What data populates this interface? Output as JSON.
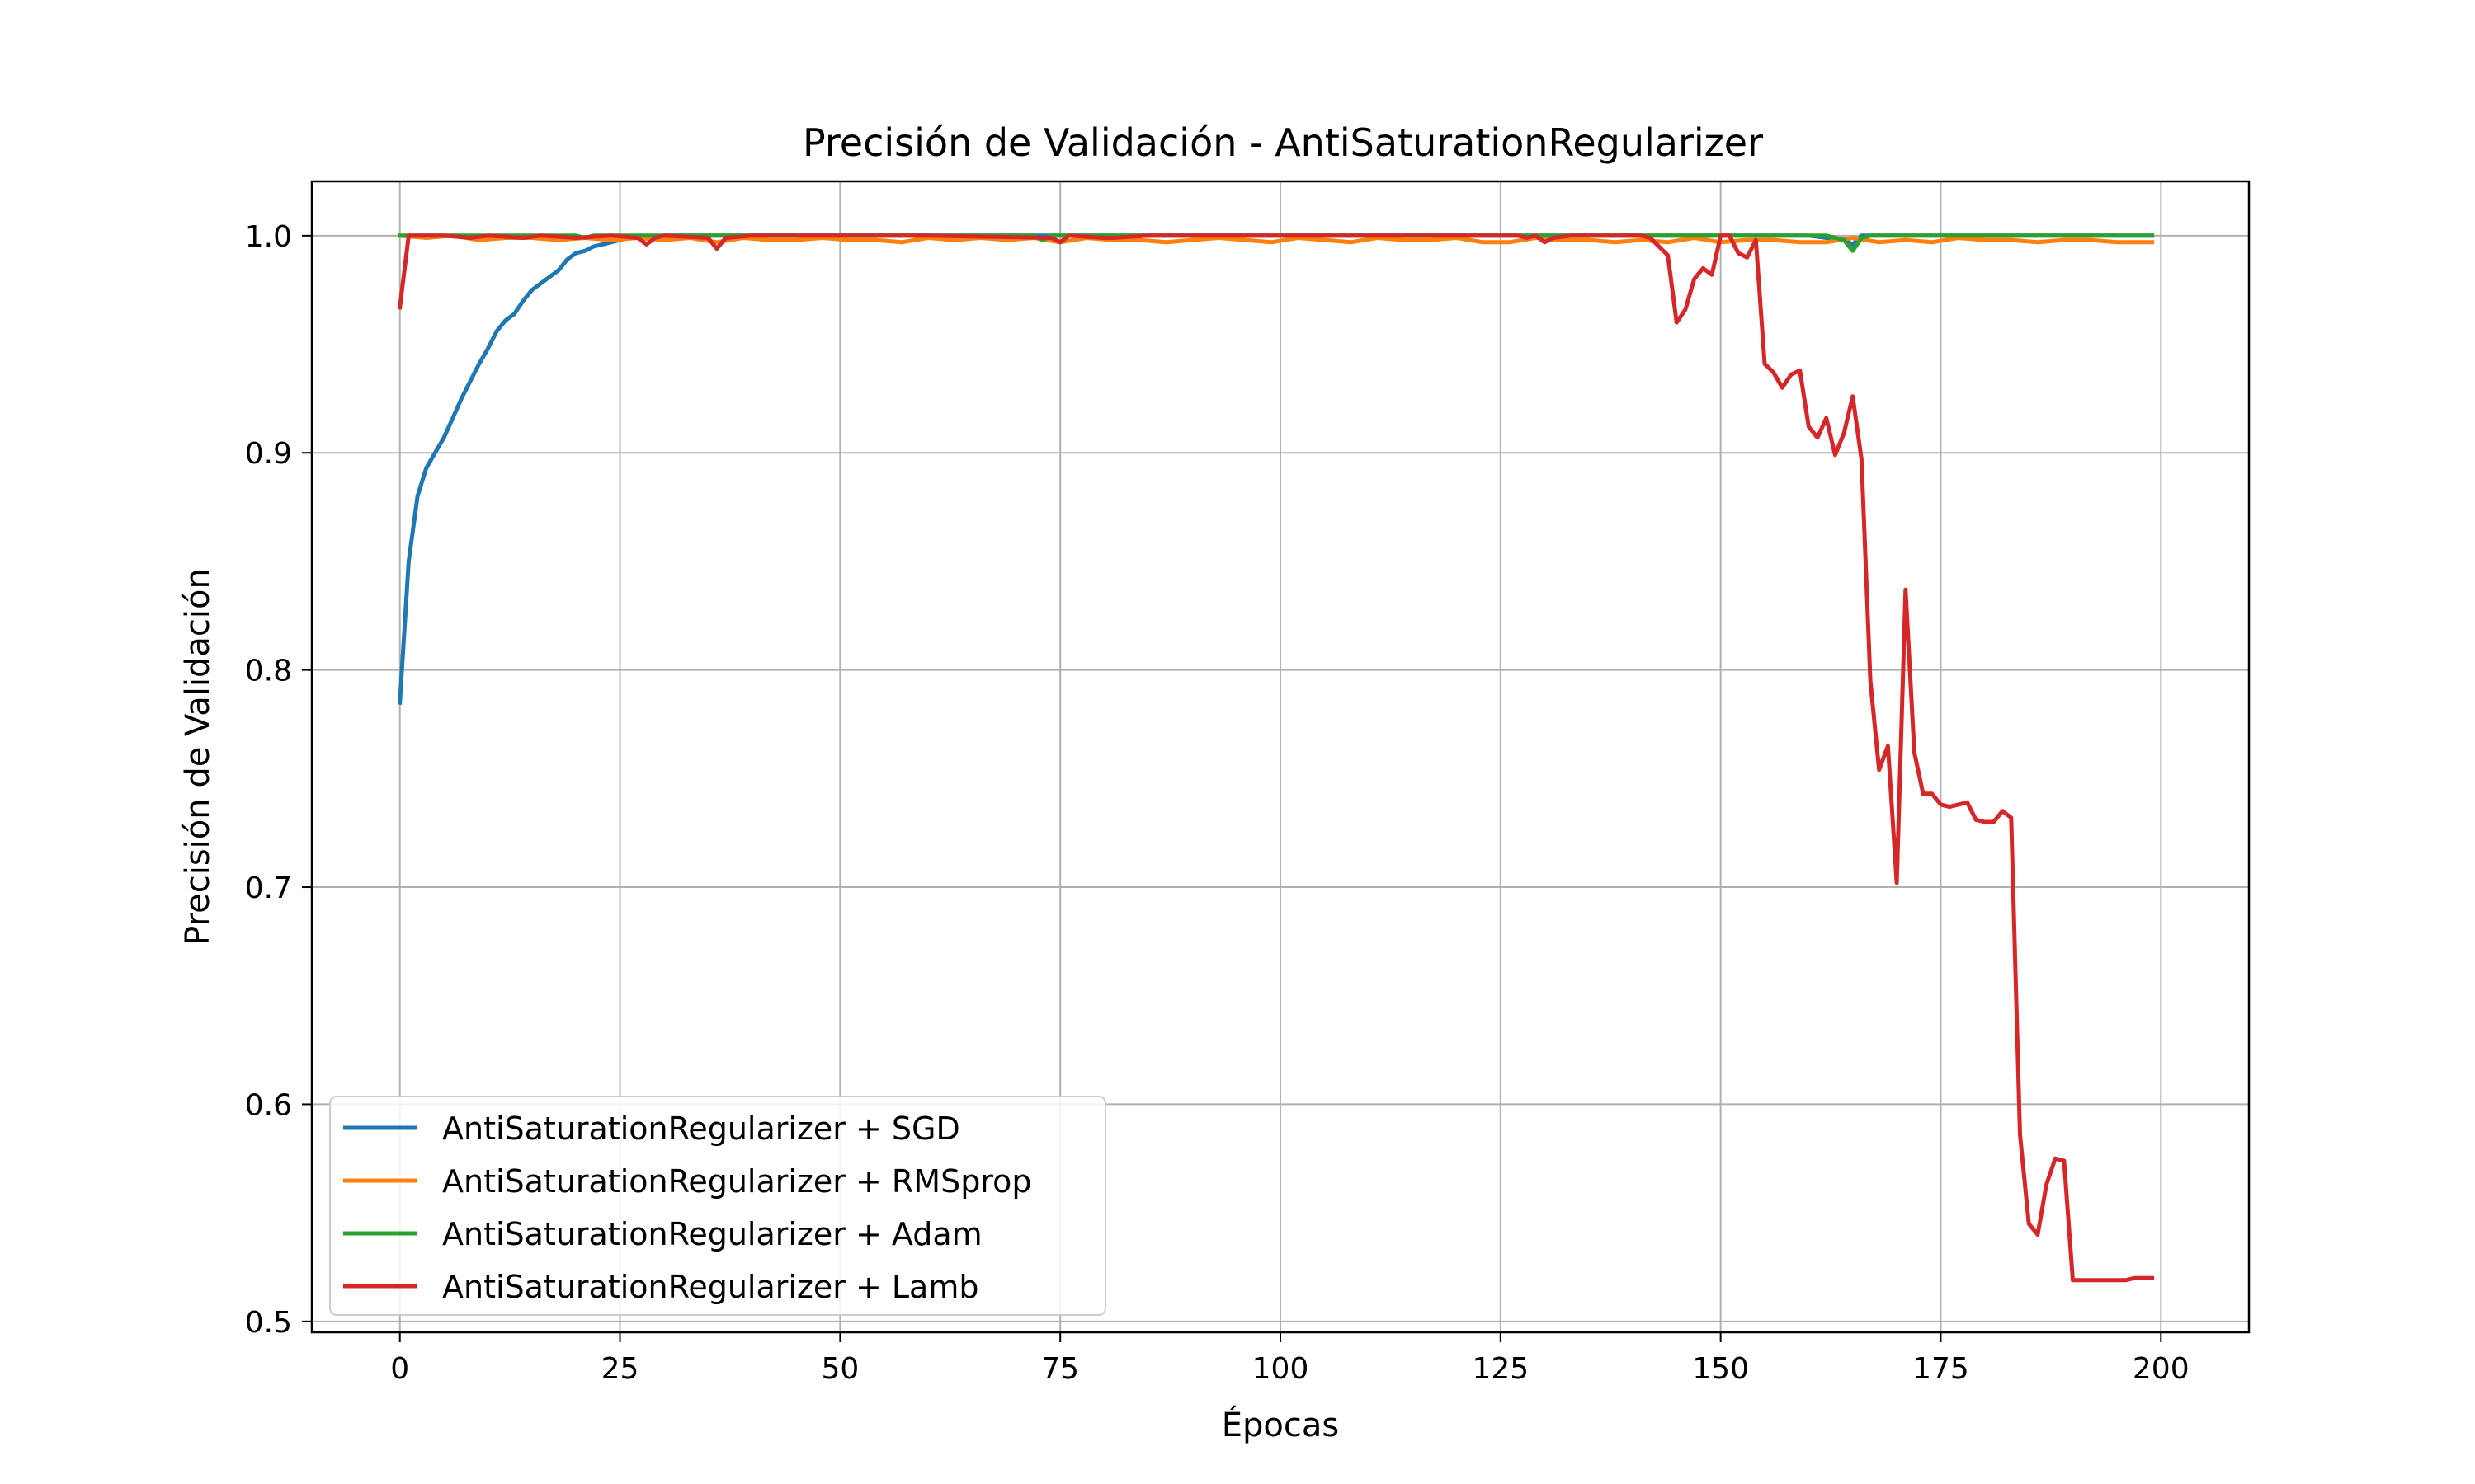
{
  "chart_data": {
    "type": "line",
    "title": "Precisión de Validación - AntiSaturationRegularizer",
    "xlabel": "Épocas",
    "ylabel": "Precisión de Validación",
    "xlim": [
      -10,
      210
    ],
    "ylim": [
      0.495,
      1.025
    ],
    "xticks": [
      0,
      25,
      50,
      75,
      100,
      125,
      150,
      175,
      200
    ],
    "yticks": [
      0.5,
      0.6,
      0.7,
      0.8,
      0.9,
      1.0
    ],
    "xtick_labels": [
      "0",
      "25",
      "50",
      "75",
      "100",
      "125",
      "150",
      "175",
      "200"
    ],
    "ytick_labels": [
      "0.5",
      "0.6",
      "0.7",
      "0.8",
      "0.9",
      "1.0"
    ],
    "grid": true,
    "legend_position": "lower-left",
    "series": [
      {
        "name": "AntiSaturationRegularizer + SGD",
        "color": "#1f77b4",
        "points": [
          [
            0,
            0.785
          ],
          [
            1,
            0.85
          ],
          [
            2,
            0.88
          ],
          [
            3,
            0.893
          ],
          [
            4,
            0.9
          ],
          [
            5,
            0.907
          ],
          [
            6,
            0.916
          ],
          [
            7,
            0.925
          ],
          [
            8,
            0.933
          ],
          [
            9,
            0.941
          ],
          [
            10,
            0.948
          ],
          [
            11,
            0.956
          ],
          [
            12,
            0.961
          ],
          [
            13,
            0.964
          ],
          [
            14,
            0.97
          ],
          [
            15,
            0.975
          ],
          [
            16,
            0.978
          ],
          [
            17,
            0.981
          ],
          [
            18,
            0.984
          ],
          [
            19,
            0.989
          ],
          [
            20,
            0.992
          ],
          [
            21,
            0.993
          ],
          [
            22,
            0.995
          ],
          [
            23,
            0.996
          ],
          [
            24,
            0.997
          ],
          [
            25,
            0.998
          ],
          [
            26,
            0.999
          ],
          [
            28,
            0.999
          ],
          [
            30,
            1.0
          ],
          [
            60,
            1.0
          ],
          [
            100,
            1.0
          ],
          [
            140,
            1.0
          ],
          [
            160,
            1.0
          ],
          [
            164,
            0.998
          ],
          [
            165,
            0.996
          ],
          [
            166,
            1.0
          ],
          [
            199,
            1.0
          ]
        ]
      },
      {
        "name": "AntiSaturationRegularizer + RMSprop",
        "color": "#ff7f0e",
        "points": [
          [
            0,
            1.0
          ],
          [
            3,
            0.999
          ],
          [
            6,
            1.0
          ],
          [
            9,
            0.998
          ],
          [
            12,
            0.999
          ],
          [
            15,
            0.999
          ],
          [
            18,
            0.998
          ],
          [
            21,
            0.999
          ],
          [
            24,
            0.998
          ],
          [
            27,
            0.999
          ],
          [
            30,
            0.998
          ],
          [
            33,
            0.999
          ],
          [
            36,
            0.997
          ],
          [
            39,
            0.999
          ],
          [
            42,
            0.998
          ],
          [
            45,
            0.998
          ],
          [
            48,
            0.999
          ],
          [
            51,
            0.998
          ],
          [
            54,
            0.998
          ],
          [
            57,
            0.997
          ],
          [
            60,
            0.999
          ],
          [
            63,
            0.998
          ],
          [
            66,
            0.999
          ],
          [
            69,
            0.998
          ],
          [
            72,
            0.999
          ],
          [
            75,
            0.997
          ],
          [
            78,
            0.999
          ],
          [
            81,
            0.998
          ],
          [
            84,
            0.998
          ],
          [
            87,
            0.997
          ],
          [
            90,
            0.998
          ],
          [
            93,
            0.999
          ],
          [
            96,
            0.998
          ],
          [
            99,
            0.997
          ],
          [
            102,
            0.999
          ],
          [
            105,
            0.998
          ],
          [
            108,
            0.997
          ],
          [
            111,
            0.999
          ],
          [
            114,
            0.998
          ],
          [
            117,
            0.998
          ],
          [
            120,
            0.999
          ],
          [
            123,
            0.997
          ],
          [
            126,
            0.997
          ],
          [
            129,
            0.999
          ],
          [
            132,
            0.998
          ],
          [
            135,
            0.998
          ],
          [
            138,
            0.997
          ],
          [
            141,
            0.998
          ],
          [
            144,
            0.997
          ],
          [
            147,
            0.999
          ],
          [
            150,
            0.997
          ],
          [
            153,
            0.998
          ],
          [
            156,
            0.998
          ],
          [
            159,
            0.997
          ],
          [
            162,
            0.997
          ],
          [
            165,
            0.999
          ],
          [
            168,
            0.997
          ],
          [
            171,
            0.998
          ],
          [
            174,
            0.997
          ],
          [
            177,
            0.999
          ],
          [
            180,
            0.998
          ],
          [
            183,
            0.998
          ],
          [
            186,
            0.997
          ],
          [
            189,
            0.998
          ],
          [
            192,
            0.998
          ],
          [
            195,
            0.997
          ],
          [
            199,
            0.997
          ]
        ]
      },
      {
        "name": "AntiSaturationRegularizer + Adam",
        "color": "#2ca02c",
        "points": [
          [
            0,
            1.0
          ],
          [
            20,
            1.0
          ],
          [
            21,
            0.999
          ],
          [
            22,
            1.0
          ],
          [
            72,
            1.0
          ],
          [
            73,
            0.998
          ],
          [
            74,
            1.0
          ],
          [
            162,
            1.0
          ],
          [
            164,
            0.998
          ],
          [
            165,
            0.993
          ],
          [
            166,
            0.999
          ],
          [
            167,
            1.0
          ],
          [
            199,
            1.0
          ]
        ]
      },
      {
        "name": "AntiSaturationRegularizer + Lamb",
        "color": "#d62728",
        "points": [
          [
            0,
            0.967
          ],
          [
            1,
            1.0
          ],
          [
            5,
            1.0
          ],
          [
            8,
            0.999
          ],
          [
            10,
            1.0
          ],
          [
            14,
            0.999
          ],
          [
            16,
            1.0
          ],
          [
            20,
            0.999
          ],
          [
            24,
            1.0
          ],
          [
            27,
            0.999
          ],
          [
            28,
            0.996
          ],
          [
            29,
            0.999
          ],
          [
            30,
            1.0
          ],
          [
            35,
            0.999
          ],
          [
            36,
            0.994
          ],
          [
            37,
            0.999
          ],
          [
            40,
            1.0
          ],
          [
            60,
            1.0
          ],
          [
            74,
            0.999
          ],
          [
            75,
            0.997
          ],
          [
            76,
            1.0
          ],
          [
            80,
            0.999
          ],
          [
            81,
            0.999
          ],
          [
            85,
            1.0
          ],
          [
            100,
            1.0
          ],
          [
            127,
            1.0
          ],
          [
            128,
            0.999
          ],
          [
            129,
            1.0
          ],
          [
            130,
            0.997
          ],
          [
            131,
            0.999
          ],
          [
            133,
            1.0
          ],
          [
            141,
            1.0
          ],
          [
            142,
            0.999
          ],
          [
            143,
            0.995
          ],
          [
            144,
            0.991
          ],
          [
            145,
            0.96
          ],
          [
            146,
            0.966
          ],
          [
            147,
            0.98
          ],
          [
            148,
            0.985
          ],
          [
            149,
            0.982
          ],
          [
            150,
            1.0
          ],
          [
            151,
            1.0
          ],
          [
            152,
            0.992
          ],
          [
            153,
            0.99
          ],
          [
            154,
            0.998
          ],
          [
            155,
            0.941
          ],
          [
            156,
            0.937
          ],
          [
            157,
            0.93
          ],
          [
            158,
            0.936
          ],
          [
            159,
            0.938
          ],
          [
            160,
            0.912
          ],
          [
            161,
            0.907
          ],
          [
            162,
            0.916
          ],
          [
            163,
            0.899
          ],
          [
            164,
            0.909
          ],
          [
            165,
            0.926
          ],
          [
            166,
            0.897
          ],
          [
            167,
            0.795
          ],
          [
            168,
            0.754
          ],
          [
            169,
            0.765
          ],
          [
            170,
            0.702
          ],
          [
            171,
            0.837
          ],
          [
            172,
            0.762
          ],
          [
            173,
            0.743
          ],
          [
            174,
            0.743
          ],
          [
            175,
            0.738
          ],
          [
            176,
            0.737
          ],
          [
            177,
            0.738
          ],
          [
            178,
            0.739
          ],
          [
            179,
            0.731
          ],
          [
            180,
            0.73
          ],
          [
            181,
            0.73
          ],
          [
            182,
            0.735
          ],
          [
            183,
            0.732
          ],
          [
            184,
            0.586
          ],
          [
            185,
            0.545
          ],
          [
            186,
            0.54
          ],
          [
            187,
            0.563
          ],
          [
            188,
            0.575
          ],
          [
            189,
            0.574
          ],
          [
            190,
            0.519
          ],
          [
            196,
            0.519
          ],
          [
            197,
            0.52
          ],
          [
            199,
            0.52
          ]
        ]
      }
    ]
  }
}
